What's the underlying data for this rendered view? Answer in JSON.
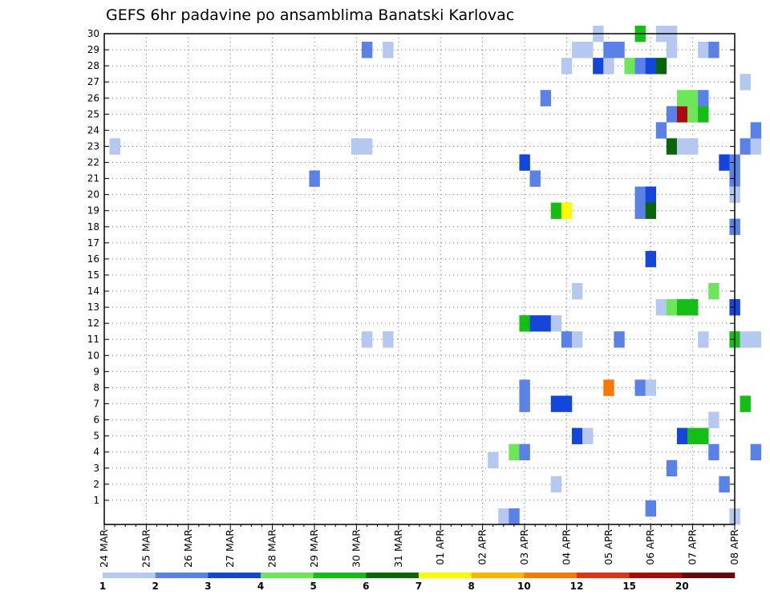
{
  "chart_data": {
    "type": "heatmap",
    "title": "GEFS 6hr padavine po ansamblima Banatski Karlovac",
    "y_ticks": [
      "1",
      "2",
      "3",
      "4",
      "5",
      "6",
      "7",
      "8",
      "9",
      "10",
      "11",
      "12",
      "13",
      "14",
      "15",
      "16",
      "17",
      "18",
      "19",
      "20",
      "21",
      "22",
      "23",
      "24",
      "25",
      "26",
      "27",
      "28",
      "29",
      "30"
    ],
    "ylim": [
      0,
      30
    ],
    "x_ticks": [
      "24 MAR",
      "25 MAR",
      "26 MAR",
      "27 MAR",
      "28 MAR",
      "29 MAR",
      "30 MAR",
      "31 MAR",
      "01 APR",
      "02 APR",
      "03 APR",
      "04 APR",
      "05 APR",
      "06 APR",
      "07 APR",
      "08 APR"
    ],
    "x_step_hours": 6,
    "grid": true,
    "legend": {
      "placement": "bottom",
      "labels": [
        "1",
        "2",
        "3",
        "4",
        "5",
        "6",
        "7",
        "8",
        "10",
        "12",
        "15",
        "20"
      ],
      "colors": [
        "#b4c8f0",
        "#5a82e6",
        "#1446dc",
        "#6ee65a",
        "#14be14",
        "#0a640a",
        "#fafa00",
        "#ffb400",
        "#fa7800",
        "#e63214",
        "#aa0a0a",
        "#640a0a"
      ]
    },
    "cells": [
      {
        "t": 1,
        "m": 23,
        "c": 1
      },
      {
        "t": 20,
        "m": 21,
        "c": 2
      },
      {
        "t": 24,
        "m": 23,
        "c": 1
      },
      {
        "t": 25,
        "m": 23,
        "c": 1
      },
      {
        "t": 25,
        "m": 29,
        "c": 2
      },
      {
        "t": 27,
        "m": 29,
        "c": 1
      },
      {
        "t": 25,
        "m": 11,
        "c": 1
      },
      {
        "t": 27,
        "m": 11,
        "c": 1
      },
      {
        "t": 37,
        "m": 3.5,
        "c": 1
      },
      {
        "t": 38,
        "m": 0,
        "c": 1
      },
      {
        "t": 39,
        "m": 0,
        "c": 2
      },
      {
        "t": 39,
        "m": 4,
        "c": 4
      },
      {
        "t": 40,
        "m": 4,
        "c": 2
      },
      {
        "t": 40,
        "m": 22,
        "c": 3
      },
      {
        "t": 40,
        "m": 12,
        "c": 5
      },
      {
        "t": 41,
        "m": 12,
        "c": 3
      },
      {
        "t": 42,
        "m": 12,
        "c": 3
      },
      {
        "t": 43,
        "m": 12,
        "c": 1
      },
      {
        "t": 40,
        "m": 8,
        "c": 2
      },
      {
        "t": 40,
        "m": 7,
        "c": 2
      },
      {
        "t": 41,
        "m": 21,
        "c": 2
      },
      {
        "t": 42,
        "m": 26,
        "c": 2
      },
      {
        "t": 43,
        "m": 19,
        "c": 5
      },
      {
        "t": 44,
        "m": 19,
        "c": 7
      },
      {
        "t": 43,
        "m": 7,
        "c": 3
      },
      {
        "t": 44,
        "m": 7,
        "c": 3
      },
      {
        "t": 43,
        "m": 2,
        "c": 1
      },
      {
        "t": 44,
        "m": 28,
        "c": 1
      },
      {
        "t": 44,
        "m": 11,
        "c": 2
      },
      {
        "t": 45,
        "m": 11,
        "c": 1
      },
      {
        "t": 45,
        "m": 29,
        "c": 1
      },
      {
        "t": 46,
        "m": 29,
        "c": 1
      },
      {
        "t": 45,
        "m": 14,
        "c": 1
      },
      {
        "t": 45,
        "m": 5,
        "c": 3
      },
      {
        "t": 46,
        "m": 5,
        "c": 1
      },
      {
        "t": 47,
        "m": 30,
        "c": 1
      },
      {
        "t": 47,
        "m": 28,
        "c": 3
      },
      {
        "t": 48,
        "m": 28,
        "c": 1
      },
      {
        "t": 48,
        "m": 29,
        "c": 2
      },
      {
        "t": 49,
        "m": 29,
        "c": 2
      },
      {
        "t": 48,
        "m": 8,
        "c": 9
      },
      {
        "t": 49,
        "m": 11,
        "c": 2
      },
      {
        "t": 50,
        "m": 28,
        "c": 4
      },
      {
        "t": 51,
        "m": 28,
        "c": 2
      },
      {
        "t": 52,
        "m": 28,
        "c": 3
      },
      {
        "t": 53,
        "m": 28,
        "c": 6
      },
      {
        "t": 51,
        "m": 30,
        "c": 5
      },
      {
        "t": 51,
        "m": 8,
        "c": 2
      },
      {
        "t": 52,
        "m": 8,
        "c": 1
      },
      {
        "t": 51,
        "m": 20,
        "c": 2
      },
      {
        "t": 52,
        "m": 20,
        "c": 3
      },
      {
        "t": 51,
        "m": 19,
        "c": 2
      },
      {
        "t": 52,
        "m": 19,
        "c": 6
      },
      {
        "t": 52,
        "m": 16,
        "c": 3
      },
      {
        "t": 52,
        "m": 0.5,
        "c": 2
      },
      {
        "t": 53,
        "m": 30,
        "c": 1
      },
      {
        "t": 54,
        "m": 30,
        "c": 1
      },
      {
        "t": 54,
        "m": 29,
        "c": 1
      },
      {
        "t": 53,
        "m": 24,
        "c": 2
      },
      {
        "t": 54,
        "m": 25,
        "c": 2
      },
      {
        "t": 55,
        "m": 25,
        "c": 11
      },
      {
        "t": 56,
        "m": 25,
        "c": 4
      },
      {
        "t": 57,
        "m": 25,
        "c": 5
      },
      {
        "t": 55,
        "m": 26,
        "c": 4
      },
      {
        "t": 56,
        "m": 26,
        "c": 4
      },
      {
        "t": 57,
        "m": 26,
        "c": 2
      },
      {
        "t": 54,
        "m": 23,
        "c": 6
      },
      {
        "t": 55,
        "m": 23,
        "c": 1
      },
      {
        "t": 56,
        "m": 23,
        "c": 1
      },
      {
        "t": 53,
        "m": 13,
        "c": 1
      },
      {
        "t": 54,
        "m": 13,
        "c": 4
      },
      {
        "t": 55,
        "m": 13,
        "c": 5
      },
      {
        "t": 56,
        "m": 13,
        "c": 5
      },
      {
        "t": 54,
        "m": 3,
        "c": 2
      },
      {
        "t": 55,
        "m": 5,
        "c": 3
      },
      {
        "t": 56,
        "m": 5,
        "c": 5
      },
      {
        "t": 57,
        "m": 5,
        "c": 5
      },
      {
        "t": 57,
        "m": 29,
        "c": 1
      },
      {
        "t": 58,
        "m": 29,
        "c": 2
      },
      {
        "t": 57,
        "m": 11,
        "c": 1
      },
      {
        "t": 58,
        "m": 14,
        "c": 4
      },
      {
        "t": 58,
        "m": 6,
        "c": 1
      },
      {
        "t": 58,
        "m": 4,
        "c": 2
      },
      {
        "t": 59,
        "m": 2,
        "c": 2
      },
      {
        "t": 59,
        "m": 22,
        "c": 3
      },
      {
        "t": 60,
        "m": 22,
        "c": 2
      },
      {
        "t": 60,
        "m": 21,
        "c": 2
      },
      {
        "t": 60,
        "m": 20,
        "c": 1
      },
      {
        "t": 60,
        "m": 18,
        "c": 2
      },
      {
        "t": 60,
        "m": 13,
        "c": 3
      },
      {
        "t": 60,
        "m": 11,
        "c": 5
      },
      {
        "t": 61,
        "m": 11,
        "c": 1
      },
      {
        "t": 62,
        "m": 11,
        "c": 1
      },
      {
        "t": 60,
        "m": 0,
        "c": 1
      },
      {
        "t": 61,
        "m": 27,
        "c": 1
      },
      {
        "t": 61,
        "m": 23,
        "c": 2
      },
      {
        "t": 62,
        "m": 23,
        "c": 1
      },
      {
        "t": 61,
        "m": 7,
        "c": 5
      },
      {
        "t": 62,
        "m": 24,
        "c": 2
      },
      {
        "t": 62,
        "m": 4,
        "c": 2
      }
    ]
  }
}
